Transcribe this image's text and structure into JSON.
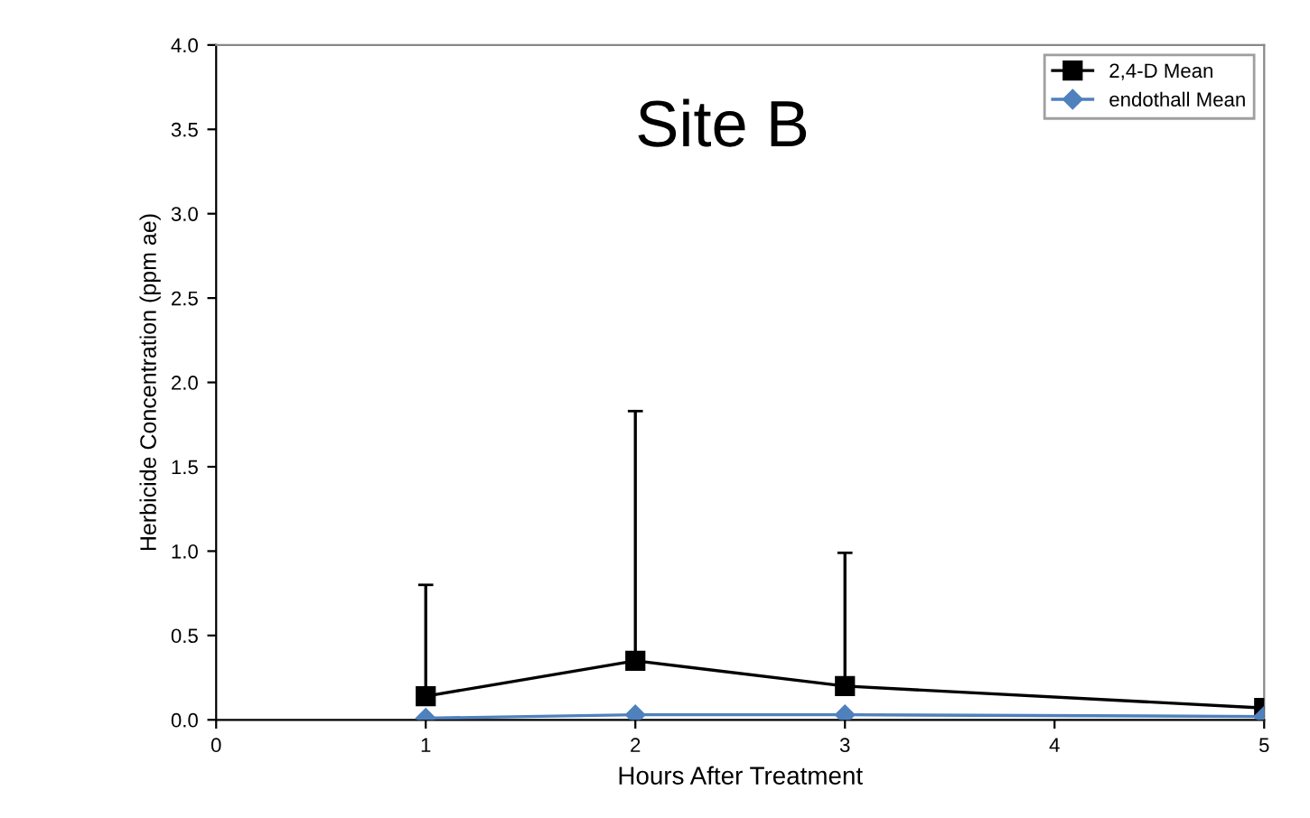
{
  "chart_data": {
    "type": "line",
    "xlabel": "Hours After Treatment",
    "ylabel": "Herbicide Concentration (ppm ae)",
    "annotations": [
      "Site B"
    ],
    "x": [
      1,
      2,
      3,
      5
    ],
    "xlim": [
      0,
      5
    ],
    "xticks": [
      0,
      1,
      2,
      3,
      4,
      5
    ],
    "ylim": [
      0,
      4
    ],
    "yticks": [
      {
        "value": 0,
        "label": "0.0"
      },
      {
        "value": 0.5,
        "label": "0.5"
      },
      {
        "value": 1,
        "label": "1.0"
      },
      {
        "value": 1.5,
        "label": "1.5"
      },
      {
        "value": 2,
        "label": "2.0"
      },
      {
        "value": 2.5,
        "label": "2.5"
      },
      {
        "value": 3,
        "label": "3.0"
      },
      {
        "value": 3.5,
        "label": "3.5"
      },
      {
        "value": 4,
        "label": "4.0"
      }
    ],
    "grid": false,
    "legend": "top right",
    "series": [
      {
        "name": "2,4-D Mean",
        "color": "#000000",
        "marker": "square",
        "values": [
          0.14,
          0.35,
          0.2,
          0.07
        ],
        "errors": [
          [
            0.14,
            0.8
          ],
          [
            0.35,
            1.83
          ],
          [
            0.2,
            0.99
          ],
          null
        ]
      },
      {
        "name": "endothall Mean",
        "color": "#4f81bd",
        "marker": "diamond",
        "values": [
          0.01,
          0.03,
          0.03,
          0.02
        ]
      }
    ]
  }
}
